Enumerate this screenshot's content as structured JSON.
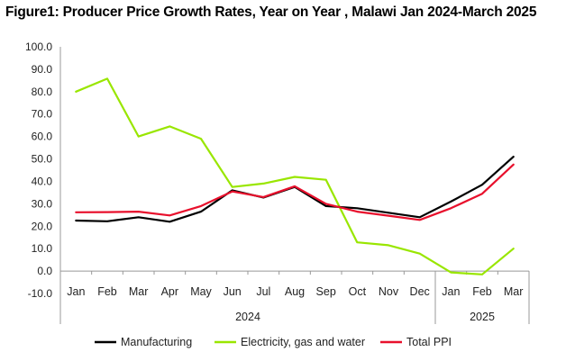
{
  "chart_data": {
    "type": "line",
    "title": "Figure1: Producer Price Growth Rates, Year on Year , Malawi Jan 2024-March 2025",
    "categories": [
      "Jan",
      "Feb",
      "Mar",
      "Apr",
      "May",
      "Jun",
      "Jul",
      "Aug",
      "Sep",
      "Oct",
      "Nov",
      "Dec",
      "Jan",
      "Feb",
      "Mar"
    ],
    "year_groups": [
      {
        "label": "2024",
        "count": 12
      },
      {
        "label": "2025",
        "count": 3
      }
    ],
    "ylim": [
      -10,
      100
    ],
    "yticks": [
      -10,
      0,
      10,
      20,
      30,
      40,
      50,
      60,
      70,
      80,
      90,
      100
    ],
    "ytick_labels": [
      "-10.0",
      "0.0",
      "10.0",
      "20.0",
      "30.0",
      "40.0",
      "50.0",
      "60.0",
      "70.0",
      "80.0",
      "90.0",
      "100.0"
    ],
    "xlabel": "",
    "ylabel": "",
    "grid": false,
    "legend_position": "bottom",
    "series": [
      {
        "name": "Manufacturing",
        "color": "#000000",
        "values": [
          22.5,
          22.2,
          24.0,
          22.0,
          26.5,
          36.0,
          32.8,
          37.5,
          29.0,
          28.0,
          26.0,
          24.0,
          31.0,
          38.5,
          51.0
        ]
      },
      {
        "name": "Electricity, gas and water",
        "color": "#99e600",
        "values": [
          80.0,
          85.8,
          60.0,
          64.5,
          59.0,
          37.5,
          39.0,
          42.0,
          40.7,
          12.8,
          11.5,
          7.8,
          -0.6,
          -1.5,
          10.0
        ]
      },
      {
        "name": "Total PPI",
        "color": "#e8102c",
        "values": [
          26.2,
          26.3,
          26.5,
          24.8,
          29.0,
          35.5,
          33.0,
          37.8,
          30.0,
          26.5,
          24.7,
          22.8,
          28.0,
          34.5,
          47.5
        ]
      }
    ]
  }
}
